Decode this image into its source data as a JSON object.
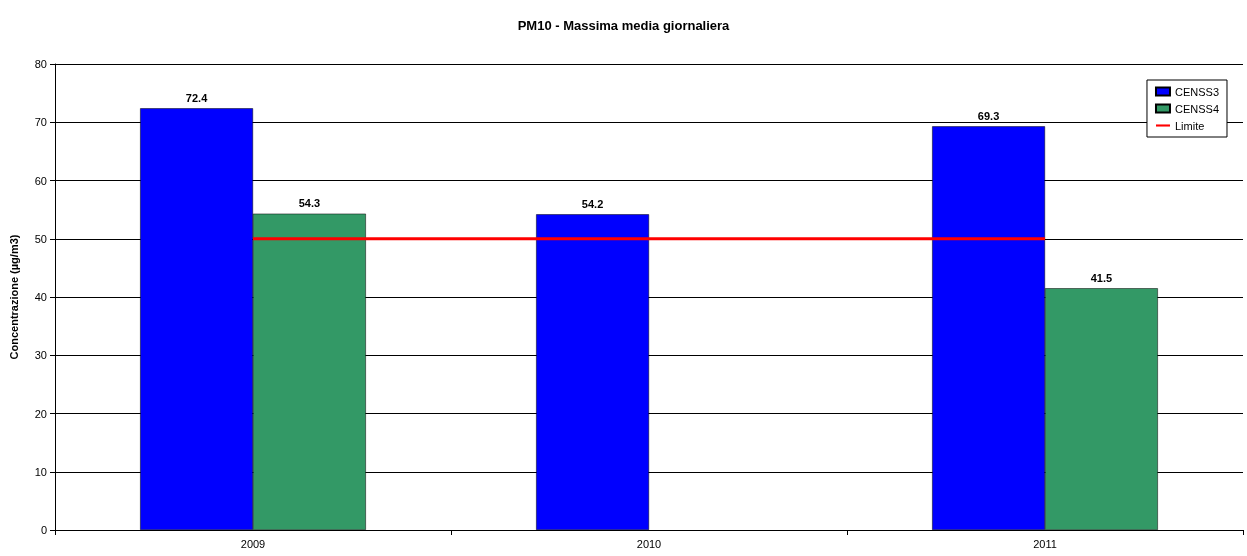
{
  "chart_data": {
    "type": "bar",
    "title": "PM10 - Massima media giornaliera",
    "ylabel": "Concentrazione (µg/m3)",
    "categories": [
      "2009",
      "2010",
      "2011"
    ],
    "series": [
      {
        "name": "CENSS3",
        "color": "#0000ff",
        "values": [
          72.4,
          54.2,
          69.3
        ],
        "value_labels": [
          "72.4",
          "54.2",
          "69.3"
        ]
      },
      {
        "name": "CENSS4",
        "color": "#339966",
        "values": [
          54.3,
          null,
          41.5
        ],
        "value_labels": [
          "54.3",
          null,
          "41.5"
        ]
      },
      {
        "name": "Limite",
        "type": "line",
        "color": "#ff0000",
        "values": [
          50,
          50,
          50
        ],
        "marker": "none",
        "line_style": "solid"
      }
    ],
    "ylim": [
      0,
      80
    ],
    "yticks": [
      0,
      10,
      20,
      30,
      40,
      50,
      60,
      70,
      80
    ],
    "grid": "y",
    "legend": "top right"
  }
}
